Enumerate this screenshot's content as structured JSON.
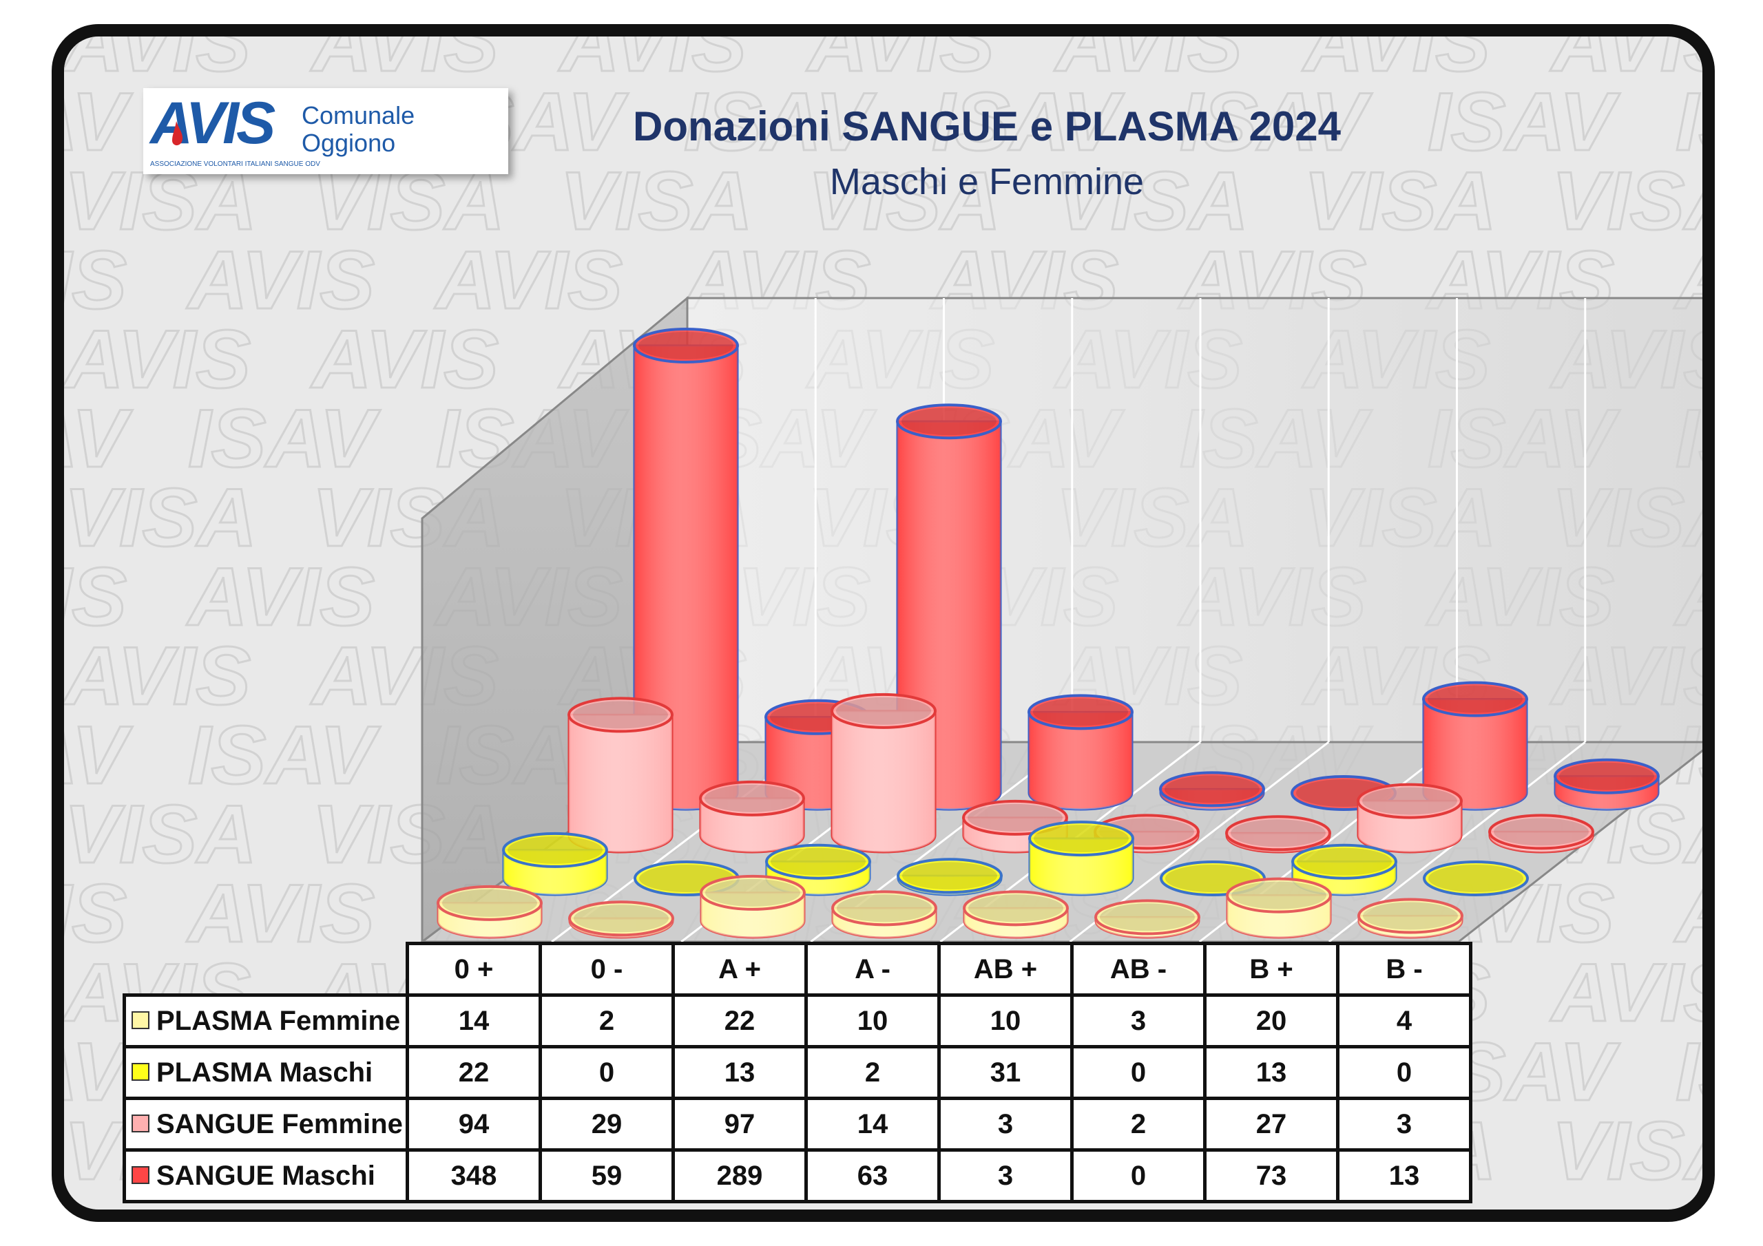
{
  "header": {
    "title": "Donazioni SANGUE e PLASMA 2024",
    "subtitle": "Maschi e Femmine"
  },
  "logo": {
    "wordmark": "AVIS",
    "line1": "Comunale",
    "line2": "Oggiono",
    "tagline": "ASSOCIAZIONE VOLONTARI ITALIANI SANGUE ODV"
  },
  "chart_data": {
    "type": "bar",
    "style": "3d-cylinder",
    "title": "Donazioni SANGUE e PLASMA 2024",
    "subtitle": "Maschi e Femmine",
    "categories": [
      "0 +",
      "0 -",
      "A +",
      "A -",
      "AB +",
      "AB -",
      "B +",
      "B -"
    ],
    "series": [
      {
        "name": "PLASMA Femmine",
        "color": "#fff7a6",
        "edge": "#e55b5b",
        "values": [
          14,
          2,
          22,
          10,
          10,
          3,
          20,
          4
        ]
      },
      {
        "name": "PLASMA Maschi",
        "color": "#ffff1a",
        "edge": "#3a73c9",
        "values": [
          22,
          0,
          13,
          2,
          31,
          0,
          13,
          0
        ]
      },
      {
        "name": "SANGUE Femmine",
        "color": "#ffb0b0",
        "edge": "#e23a3a",
        "values": [
          94,
          29,
          97,
          14,
          3,
          2,
          27,
          3
        ]
      },
      {
        "name": "SANGUE Maschi",
        "color": "#ff4646",
        "edge": "#3a60c9",
        "values": [
          348,
          59,
          289,
          63,
          3,
          0,
          73,
          13
        ]
      }
    ],
    "ylim": [
      0,
      400
    ],
    "grid": true,
    "legend": "table-below"
  }
}
